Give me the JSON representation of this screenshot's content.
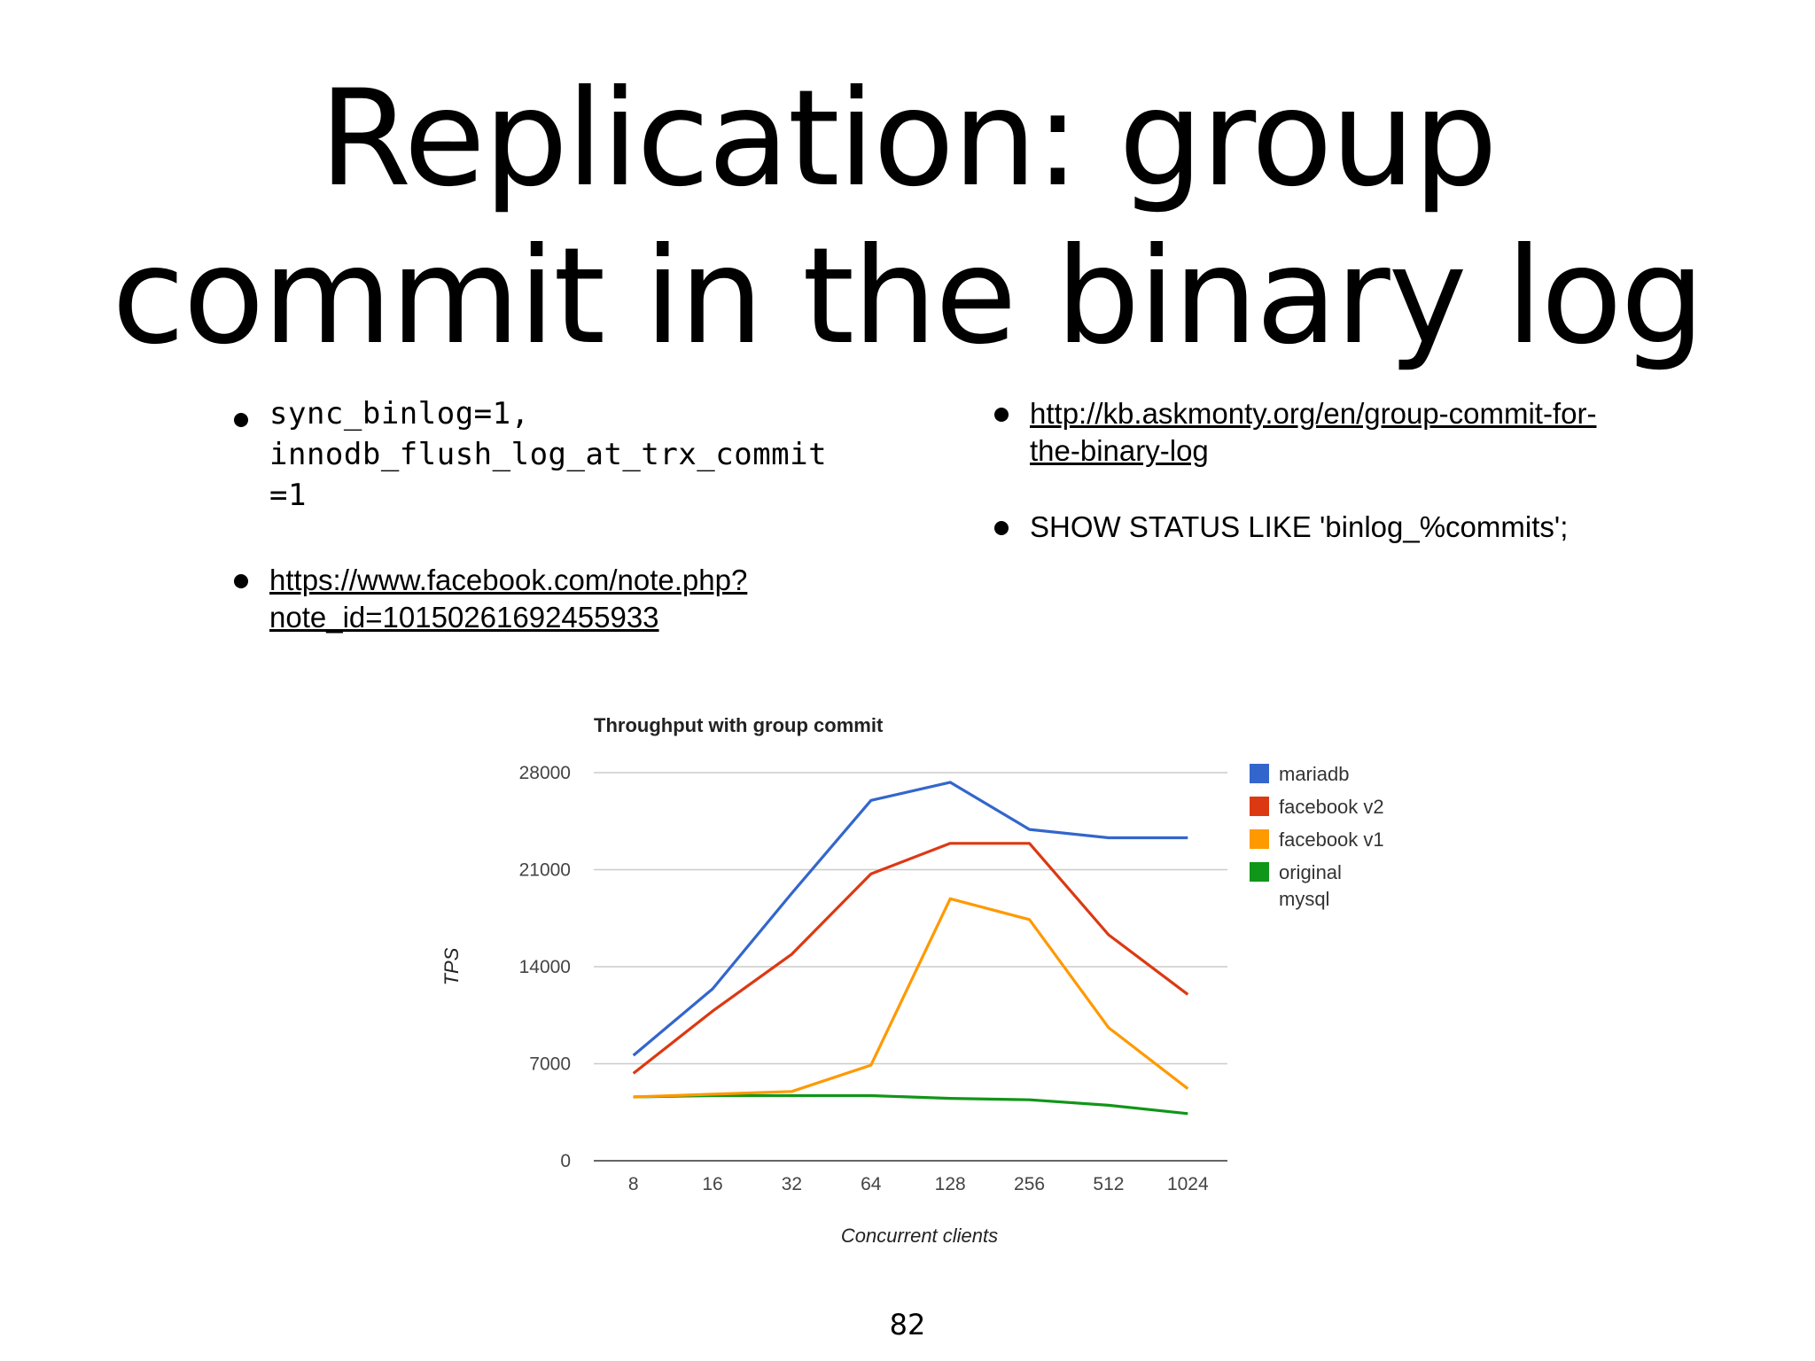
{
  "slide": {
    "title_line1": "Replication: group",
    "title_line2": "commit in the binary log",
    "page_number": "82"
  },
  "bullets_left": {
    "code_lines": [
      "sync_binlog=1,",
      "innodb_flush_log_at_trx_commit",
      "=1"
    ],
    "facebook_link_line1": "https://www.facebook.com/note.php?",
    "facebook_link_line2": "note_id=10150261692455933"
  },
  "bullets_right": {
    "kb_link_line1": "http://kb.askmonty.org/en/group-commit-for-",
    "kb_link_line2": "the-binary-log",
    "show_status": "SHOW STATUS LIKE 'binlog_%commits';"
  },
  "chart_data": {
    "type": "line",
    "title": "Throughput with group commit",
    "xlabel": "Concurrent clients",
    "ylabel": "TPS",
    "categories": [
      "8",
      "16",
      "32",
      "64",
      "128",
      "256",
      "512",
      "1024"
    ],
    "yticks": [
      "0",
      "7000",
      "14000",
      "21000",
      "28000"
    ],
    "ylim": [
      0,
      28000
    ],
    "grid": true,
    "legend_position": "right",
    "series": [
      {
        "name": "mariadb",
        "color": "#3366cc",
        "values": [
          7600,
          12400,
          19300,
          26000,
          27300,
          23900,
          23300,
          23300
        ]
      },
      {
        "name": "facebook v2",
        "color": "#dc3912",
        "values": [
          6300,
          10800,
          14900,
          20700,
          22900,
          22900,
          16300,
          12000
        ]
      },
      {
        "name": "facebook v1",
        "color": "#ff9900",
        "values": [
          4600,
          4800,
          5000,
          6900,
          18900,
          17400,
          9600,
          5200
        ]
      },
      {
        "name": "original mysql",
        "color": "#109618",
        "values": [
          4600,
          4700,
          4700,
          4700,
          4500,
          4400,
          4000,
          3400
        ]
      }
    ],
    "legend_lines": [
      [
        "mariadb"
      ],
      [
        "facebook v2"
      ],
      [
        "facebook v1"
      ],
      [
        "original",
        "mysql"
      ]
    ]
  }
}
